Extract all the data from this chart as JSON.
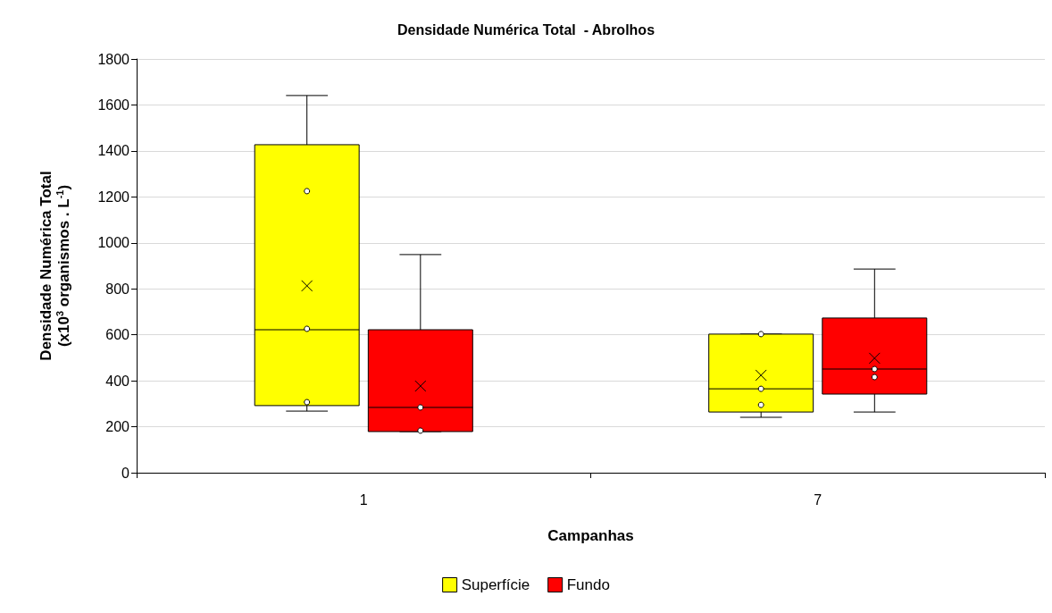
{
  "chart_data": {
    "type": "box",
    "title": "Densidade Numérica Total  - Abrolhos",
    "xlabel": "Campanhas",
    "ylabel": "Densidade Numérica Total\n(x10$^{3}$ organismos . L$^{-1}$)",
    "categories": [
      "1",
      "7"
    ],
    "series": [
      {
        "name": "Superfície",
        "color": "#ffff00",
        "boxes": [
          {
            "low": 268,
            "q1": 292,
            "median": 622,
            "q3": 1427,
            "high": 1641,
            "mean": 813,
            "outliers": [
              1225,
              626,
              307
            ]
          },
          {
            "low": 241,
            "q1": 264,
            "median": 365,
            "q3": 603,
            "high": 603,
            "mean": 424,
            "outliers": [
              603,
              365,
              295
            ]
          }
        ]
      },
      {
        "name": "Fundo",
        "color": "#ff0000",
        "boxes": [
          {
            "low": 179,
            "q1": 179,
            "median": 284,
            "q3": 622,
            "high": 949,
            "mean": 377,
            "outliers": [
              284,
              183
            ]
          },
          {
            "low": 264,
            "q1": 342,
            "median": 451,
            "q3": 673,
            "high": 886,
            "mean": 498,
            "outliers": [
              451,
              416
            ]
          }
        ]
      }
    ],
    "ylim": [
      0,
      1800
    ],
    "yticks": [
      0,
      200,
      400,
      600,
      800,
      1000,
      1200,
      1400,
      1600,
      1800
    ],
    "grid": "y",
    "legend": "bottom",
    "marker": "circle"
  }
}
